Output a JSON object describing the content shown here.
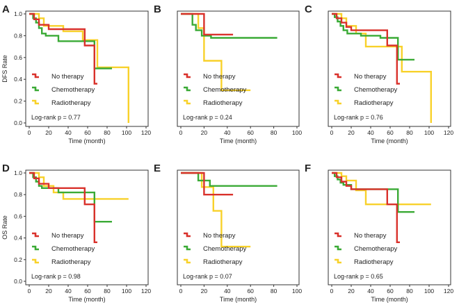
{
  "colors": {
    "No therapy": "#d9312b",
    "Chemotherapy": "#3aaa35",
    "Radiotherapy": "#f8d12a",
    "axis": "#333333"
  },
  "chart_data": [
    {
      "panel": "A",
      "type": "line",
      "xlabel": "Time (month)",
      "ylabel": "DFS Rate",
      "xlim": [
        0,
        120
      ],
      "ylim": [
        0,
        1
      ],
      "xticks": [
        0,
        20,
        40,
        60,
        80,
        100,
        120
      ],
      "yticks": [
        "0.0",
        "0.2",
        "0.4",
        "0.6",
        "0.8",
        "1.0"
      ],
      "legend": [
        "No therapy",
        "Chemotherapy",
        "Radiotherapy"
      ],
      "pvalue": "Log-rank p = 0.77",
      "series": [
        {
          "name": "No therapy",
          "points": [
            [
              0,
              1
            ],
            [
              5,
              1
            ],
            [
              5,
              0.95
            ],
            [
              10,
              0.95
            ],
            [
              10,
              0.9
            ],
            [
              20,
              0.9
            ],
            [
              20,
              0.86
            ],
            [
              57,
              0.86
            ],
            [
              57,
              0.71
            ],
            [
              67,
              0.71
            ],
            [
              67,
              0.36
            ],
            [
              70,
              0.36
            ]
          ]
        },
        {
          "name": "Chemotherapy",
          "points": [
            [
              0,
              1
            ],
            [
              4,
              1
            ],
            [
              4,
              0.96
            ],
            [
              7,
              0.96
            ],
            [
              7,
              0.92
            ],
            [
              10,
              0.92
            ],
            [
              10,
              0.87
            ],
            [
              13,
              0.87
            ],
            [
              13,
              0.82
            ],
            [
              17,
              0.82
            ],
            [
              17,
              0.8
            ],
            [
              30,
              0.8
            ],
            [
              30,
              0.75
            ],
            [
              67,
              0.75
            ],
            [
              67,
              0.5
            ],
            [
              85,
              0.5
            ]
          ]
        },
        {
          "name": "Radiotherapy",
          "points": [
            [
              0,
              1
            ],
            [
              10,
              1
            ],
            [
              10,
              0.96
            ],
            [
              15,
              0.96
            ],
            [
              15,
              0.89
            ],
            [
              35,
              0.89
            ],
            [
              35,
              0.84
            ],
            [
              55,
              0.84
            ],
            [
              55,
              0.76
            ],
            [
              70,
              0.76
            ],
            [
              70,
              0.51
            ],
            [
              102,
              0.51
            ],
            [
              102,
              0
            ]
          ]
        }
      ]
    },
    {
      "panel": "B",
      "type": "line",
      "xlabel": "Time (month)",
      "ylabel": "",
      "xlim": [
        0,
        100
      ],
      "ylim": [
        0,
        1
      ],
      "xticks": [
        0,
        20,
        40,
        60,
        80,
        100
      ],
      "yticks": [],
      "legend": [
        "No therapy",
        "Chemotherapy",
        "Radiotherapy"
      ],
      "pvalue": "Log-rank p = 0.24",
      "series": [
        {
          "name": "No therapy",
          "points": [
            [
              0,
              1
            ],
            [
              20,
              1
            ],
            [
              20,
              0.81
            ],
            [
              45,
              0.81
            ]
          ]
        },
        {
          "name": "Chemotherapy",
          "points": [
            [
              0,
              1
            ],
            [
              10,
              1
            ],
            [
              10,
              0.9
            ],
            [
              13,
              0.9
            ],
            [
              13,
              0.85
            ],
            [
              18,
              0.85
            ],
            [
              18,
              0.8
            ],
            [
              26,
              0.8
            ],
            [
              26,
              0.78
            ],
            [
              83,
              0.78
            ]
          ]
        },
        {
          "name": "Radiotherapy",
          "points": [
            [
              0,
              1
            ],
            [
              15,
              1
            ],
            [
              15,
              0.87
            ],
            [
              20,
              0.87
            ],
            [
              20,
              0.57
            ],
            [
              35,
              0.57
            ],
            [
              35,
              0.3
            ],
            [
              60,
              0.3
            ]
          ]
        }
      ]
    },
    {
      "panel": "C",
      "type": "line",
      "xlabel": "Time (month)",
      "ylabel": "",
      "xlim": [
        0,
        120
      ],
      "ylim": [
        0,
        1
      ],
      "xticks": [
        0,
        20,
        40,
        60,
        80,
        100,
        120
      ],
      "yticks": [],
      "legend": [
        "No therapy",
        "Chemotherapy",
        "Radiotherapy"
      ],
      "pvalue": "Log-rank p = 0.76",
      "series": [
        {
          "name": "No therapy",
          "points": [
            [
              0,
              1
            ],
            [
              5,
              1
            ],
            [
              5,
              0.96
            ],
            [
              10,
              0.96
            ],
            [
              10,
              0.92
            ],
            [
              15,
              0.92
            ],
            [
              15,
              0.88
            ],
            [
              20,
              0.88
            ],
            [
              20,
              0.85
            ],
            [
              57,
              0.85
            ],
            [
              57,
              0.71
            ],
            [
              67,
              0.71
            ],
            [
              67,
              0.36
            ],
            [
              70,
              0.36
            ]
          ]
        },
        {
          "name": "Chemotherapy",
          "points": [
            [
              0,
              1
            ],
            [
              3,
              1
            ],
            [
              3,
              0.97
            ],
            [
              6,
              0.97
            ],
            [
              6,
              0.93
            ],
            [
              9,
              0.93
            ],
            [
              9,
              0.89
            ],
            [
              12,
              0.89
            ],
            [
              12,
              0.85
            ],
            [
              16,
              0.85
            ],
            [
              16,
              0.82
            ],
            [
              30,
              0.82
            ],
            [
              30,
              0.8
            ],
            [
              50,
              0.8
            ],
            [
              50,
              0.78
            ],
            [
              68,
              0.78
            ],
            [
              68,
              0.58
            ],
            [
              85,
              0.58
            ]
          ]
        },
        {
          "name": "Radiotherapy",
          "points": [
            [
              0,
              1
            ],
            [
              10,
              1
            ],
            [
              10,
              0.96
            ],
            [
              15,
              0.96
            ],
            [
              15,
              0.89
            ],
            [
              25,
              0.89
            ],
            [
              25,
              0.82
            ],
            [
              35,
              0.82
            ],
            [
              35,
              0.7
            ],
            [
              65,
              0.7
            ],
            [
              65,
              0.7
            ],
            [
              72,
              0.7
            ],
            [
              72,
              0.47
            ],
            [
              102,
              0.47
            ],
            [
              102,
              0
            ]
          ]
        }
      ]
    },
    {
      "panel": "D",
      "type": "line",
      "xlabel": "Time (month)",
      "ylabel": "OS Rate",
      "xlim": [
        0,
        120
      ],
      "ylim": [
        0,
        1
      ],
      "xticks": [
        0,
        20,
        40,
        60,
        80,
        100,
        120
      ],
      "yticks": [
        "0.0",
        "0.2",
        "0.4",
        "0.6",
        "0.8",
        "1.0"
      ],
      "legend": [
        "No therapy",
        "Chemotherapy",
        "Radiotherapy"
      ],
      "pvalue": "Log-rank p = 0.98",
      "series": [
        {
          "name": "No therapy",
          "points": [
            [
              0,
              1
            ],
            [
              5,
              1
            ],
            [
              5,
              0.95
            ],
            [
              10,
              0.95
            ],
            [
              10,
              0.9
            ],
            [
              20,
              0.9
            ],
            [
              20,
              0.86
            ],
            [
              57,
              0.86
            ],
            [
              57,
              0.71
            ],
            [
              67,
              0.71
            ],
            [
              67,
              0.36
            ],
            [
              70,
              0.36
            ]
          ]
        },
        {
          "name": "Chemotherapy",
          "points": [
            [
              0,
              1
            ],
            [
              4,
              1
            ],
            [
              4,
              0.96
            ],
            [
              7,
              0.96
            ],
            [
              7,
              0.92
            ],
            [
              10,
              0.92
            ],
            [
              10,
              0.88
            ],
            [
              13,
              0.88
            ],
            [
              13,
              0.86
            ],
            [
              30,
              0.86
            ],
            [
              30,
              0.82
            ],
            [
              67,
              0.82
            ],
            [
              67,
              0.55
            ],
            [
              85,
              0.55
            ]
          ]
        },
        {
          "name": "Radiotherapy",
          "points": [
            [
              0,
              1
            ],
            [
              10,
              1
            ],
            [
              10,
              0.96
            ],
            [
              15,
              0.96
            ],
            [
              15,
              0.88
            ],
            [
              25,
              0.88
            ],
            [
              25,
              0.82
            ],
            [
              35,
              0.82
            ],
            [
              35,
              0.76
            ],
            [
              102,
              0.76
            ]
          ]
        }
      ]
    },
    {
      "panel": "E",
      "type": "line",
      "xlabel": "Time (month)",
      "ylabel": "",
      "xlim": [
        0,
        100
      ],
      "ylim": [
        0,
        1
      ],
      "xticks": [
        0,
        20,
        40,
        60,
        80,
        100
      ],
      "yticks": [],
      "legend": [
        "No therapy",
        "Chemotherapy",
        "Radiotherapy"
      ],
      "pvalue": "Log-rank p = 0.07",
      "series": [
        {
          "name": "No therapy",
          "points": [
            [
              0,
              1
            ],
            [
              20,
              1
            ],
            [
              20,
              0.8
            ],
            [
              45,
              0.8
            ]
          ]
        },
        {
          "name": "Chemotherapy",
          "points": [
            [
              0,
              1
            ],
            [
              15,
              1
            ],
            [
              15,
              0.93
            ],
            [
              25,
              0.93
            ],
            [
              25,
              0.88
            ],
            [
              83,
              0.88
            ]
          ]
        },
        {
          "name": "Radiotherapy",
          "points": [
            [
              0,
              1
            ],
            [
              18,
              1
            ],
            [
              18,
              0.87
            ],
            [
              28,
              0.87
            ],
            [
              28,
              0.65
            ],
            [
              35,
              0.65
            ],
            [
              35,
              0.32
            ],
            [
              60,
              0.32
            ]
          ]
        }
      ]
    },
    {
      "panel": "F",
      "type": "line",
      "xlabel": "Time (month)",
      "ylabel": "",
      "xlim": [
        0,
        120
      ],
      "ylim": [
        0,
        1
      ],
      "xticks": [
        0,
        20,
        40,
        60,
        80,
        100,
        120
      ],
      "yticks": [],
      "legend": [
        "No therapy",
        "Chemotherapy",
        "Radiotherapy"
      ],
      "pvalue": "Log-rank p = 0.65",
      "series": [
        {
          "name": "No therapy",
          "points": [
            [
              0,
              1
            ],
            [
              5,
              1
            ],
            [
              5,
              0.96
            ],
            [
              10,
              0.96
            ],
            [
              10,
              0.92
            ],
            [
              15,
              0.92
            ],
            [
              15,
              0.88
            ],
            [
              20,
              0.88
            ],
            [
              20,
              0.85
            ],
            [
              57,
              0.85
            ],
            [
              57,
              0.71
            ],
            [
              67,
              0.71
            ],
            [
              67,
              0.36
            ],
            [
              70,
              0.36
            ]
          ]
        },
        {
          "name": "Chemotherapy",
          "points": [
            [
              0,
              1
            ],
            [
              3,
              1
            ],
            [
              3,
              0.97
            ],
            [
              6,
              0.97
            ],
            [
              6,
              0.94
            ],
            [
              9,
              0.94
            ],
            [
              9,
              0.91
            ],
            [
              12,
              0.91
            ],
            [
              12,
              0.89
            ],
            [
              20,
              0.89
            ],
            [
              20,
              0.85
            ],
            [
              68,
              0.85
            ],
            [
              68,
              0.64
            ],
            [
              85,
              0.64
            ]
          ]
        },
        {
          "name": "Radiotherapy",
          "points": [
            [
              0,
              1
            ],
            [
              10,
              1
            ],
            [
              10,
              0.97
            ],
            [
              15,
              0.97
            ],
            [
              15,
              0.93
            ],
            [
              25,
              0.93
            ],
            [
              25,
              0.84
            ],
            [
              35,
              0.84
            ],
            [
              35,
              0.71
            ],
            [
              102,
              0.71
            ]
          ]
        }
      ]
    }
  ]
}
